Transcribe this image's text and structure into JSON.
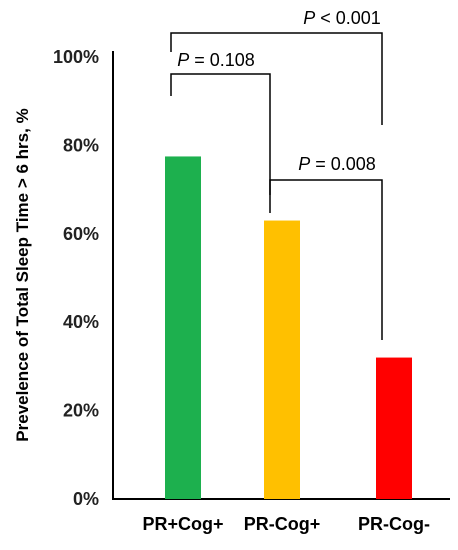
{
  "chart_data": {
    "type": "bar",
    "categories": [
      "PR+Cog+",
      "PR-Cog+",
      "PR-Cog-"
    ],
    "values": [
      77.5,
      63,
      32
    ],
    "ylabel": "Prevelence of Total Sleep Time > 6 hrs, %",
    "xlabel": "",
    "ylim": [
      0,
      100
    ],
    "yticks": [
      "0%",
      "20%",
      "40%",
      "60%",
      "80%",
      "100%"
    ],
    "colors": [
      "#1DB04E",
      "#FFC000",
      "#FF0000"
    ],
    "annotations": [
      {
        "from": "PR+Cog+",
        "to": "PR-Cog+",
        "p_symbol": "P",
        "p_text": " = 0.108"
      },
      {
        "from": "PR-Cog+",
        "to": "PR-Cog-",
        "p_symbol": "P",
        "p_text": " = 0.008"
      },
      {
        "from": "PR+Cog+",
        "to": "PR-Cog-",
        "p_symbol": "P",
        "p_text": " < 0.001"
      }
    ]
  }
}
